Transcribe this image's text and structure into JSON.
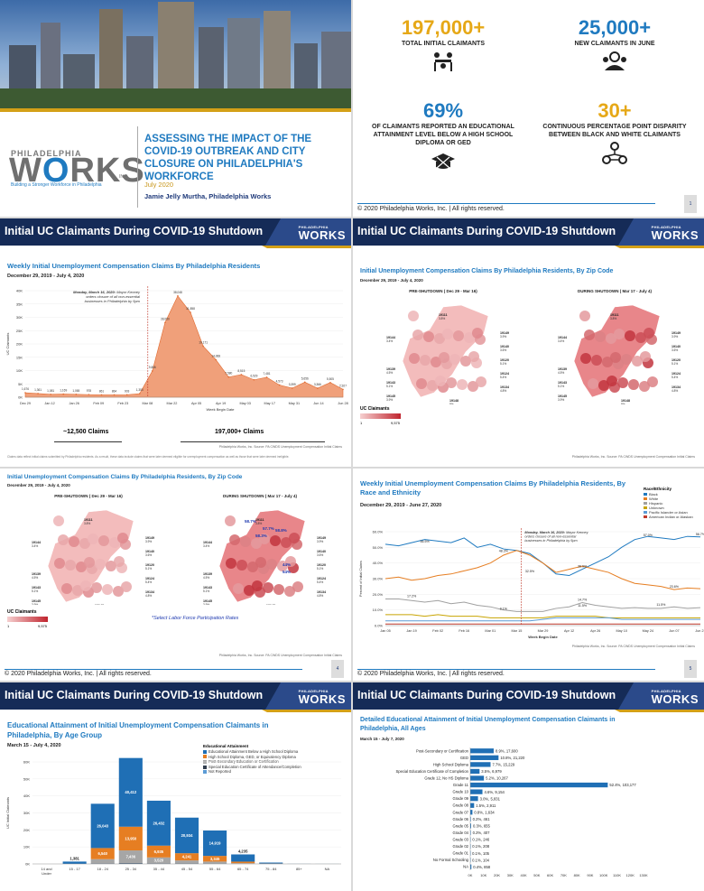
{
  "footer_text": "© 2020 Philadelphia Works, Inc. | All rights reserved.",
  "banner_title": "Initial UC Claimants During COVID-19 Shutdown",
  "banner_logo": {
    "top": "PHILADELPHIA",
    "main": "WORKS"
  },
  "colors": {
    "navy": "#152b57",
    "blue": "#1f7ac0",
    "gold": "#d4a017",
    "orange": "#e67e22",
    "salmon": "#f0a07a"
  },
  "cover": {
    "logo_top": "PHILADELPHIA",
    "logo_main_a": "W",
    "logo_main_o": "O",
    "logo_main_b": "RKS",
    "logo_inc": "INC",
    "logo_tagline": "Building a Stronger Workforce in Philadelphia",
    "title": "ASSESSING THE IMPACT OF THE COVID-19 OUTBREAK AND CITY CLOSURE ON PHILADELPHIA'S WORKFORCE",
    "date": "July 2020",
    "author": "Jamie Jelly Murtha, Philadelphia Works"
  },
  "stats": {
    "s1": {
      "value": "197,000+",
      "label": "TOTAL INITIAL CLAIMANTS",
      "icon": "meeting-icon"
    },
    "s2": {
      "value": "25,000+",
      "label": "NEW CLAIMANTS IN JUNE",
      "icon": "group-icon"
    },
    "s3": {
      "value": "69%",
      "label": "OF CLAIMANTS REPORTED AN EDUCATIONAL ATTAINMENT LEVEL BELOW A HIGH SCHOOL DIPLOMA OR GED",
      "icon": "graduation-cap-icon"
    },
    "s4": {
      "value": "30+",
      "label": "CONTINUOUS PERCENTAGE POINT DISPARITY BETWEEN BLACK AND WHITE CLAIMANTS",
      "icon": "network-icon"
    },
    "page": "1"
  },
  "weekly": {
    "title": "Weekly Initial Unemployment Compensation Claims By Philadelphia Residents",
    "subtitle": "December 29, 2019 - July 4, 2020",
    "annotation_date": "Monday, March 16, 2020:",
    "annotation_text": "Mayor Kenney orders closure of all non-essential businesses in Philadelphia by 5pm",
    "ylabel": "UC Claimants",
    "xlabel": "Week Begin Date",
    "before_total": "~12,500 Claims",
    "after_total": "197,000+ Claims",
    "source": "Philadelphia Works, Inc. Source: PA CWDS Unemployment Compensation Initial Claims",
    "note": "Claims data reflect initial claims submitted by Philadelphia residents. As a result, these data include claims that were later deemed eligible for unemployment compensation as well as those that were later deemed ineligible."
  },
  "chart_data": [
    {
      "type": "area",
      "title": "Weekly Initial Unemployment Compensation Claims By Philadelphia Residents",
      "xlabel": "Week Begin Date",
      "ylabel": "UC Claimants",
      "ylim": [
        0,
        40000
      ],
      "yticks": [
        "0K",
        "5K",
        "10K",
        "15K",
        "20K",
        "25K",
        "30K",
        "35K",
        "40K"
      ],
      "xticks": [
        "Dec 29",
        "Jan 12",
        "Jan 26",
        "Feb 09",
        "Feb 23",
        "Mar 08",
        "Mar 22",
        "Apr 05",
        "Apr 19",
        "May 03",
        "May 17",
        "May 31",
        "Jun 14",
        "Jun 28"
      ],
      "values": [
        1676,
        1361,
        1081,
        1169,
        1065,
        978,
        861,
        864,
        903,
        1353,
        9856,
        28050,
        38048,
        31858,
        19171,
        14068,
        7580,
        8515,
        6529,
        7481,
        4573,
        3399,
        5656,
        3366,
        5505,
        2927
      ],
      "labels": [
        "1,676",
        "1,361",
        "1,081",
        "1,169",
        "1,065",
        "978",
        "861",
        "864",
        "903",
        "1,353",
        "9,856",
        "28,050",
        "38,048",
        "31,858",
        "19,171",
        "14,068",
        "7,580",
        "8,515",
        "6,529",
        "7,481",
        "4,573",
        "3,399",
        "5,656",
        "3,366",
        "5,505",
        "2,927"
      ],
      "series_labels": [
        "Mar 15",
        "Mar 22",
        "Mar 29",
        "Apr 05",
        "Apr 12",
        "Apr 19",
        "",
        "May 03",
        "",
        "May 17",
        "May 24",
        "",
        "",
        "",
        "",
        ""
      ]
    },
    {
      "type": "line",
      "title": "Weekly Initial Unemployment Compensation Claims By Philadelphia Residents, By Race and Ethnicity",
      "xlabel": "Week Begin Date",
      "ylabel": "Percent of Initial Claims",
      "ylim": [
        0,
        60
      ],
      "yticks": [
        "0.0%",
        "10.0%",
        "20.0%",
        "30.0%",
        "40.0%",
        "50.0%",
        "60.0%"
      ],
      "xticks": [
        "Jan 05",
        "Jan 19",
        "Feb 02",
        "Feb 16",
        "Mar 01",
        "Mar 15",
        "Mar 29",
        "Apr 12",
        "Apr 26",
        "May 10",
        "May 24",
        "Jun 07",
        "Jun 21"
      ],
      "series": [
        {
          "name": "Black",
          "color": "#1f7ac0",
          "values": [
            52,
            51,
            53,
            55,
            54,
            53,
            56,
            50,
            52,
            49,
            48,
            46,
            40,
            33,
            32,
            36,
            40,
            44,
            50,
            55,
            57,
            56,
            55,
            57,
            56.7
          ]
        },
        {
          "name": "White",
          "color": "#e67e22",
          "values": [
            30,
            31,
            29,
            30,
            32,
            33,
            35,
            37,
            40,
            45,
            48,
            45,
            40,
            34,
            36,
            38,
            36,
            34,
            30,
            27,
            26,
            25,
            23,
            24,
            23.6
          ]
        },
        {
          "name": "Hispanic",
          "color": "#a0a0a0",
          "values": [
            17,
            17,
            16,
            15,
            16,
            14,
            15,
            13,
            12,
            10,
            9,
            9,
            9,
            11,
            12,
            14.7,
            13,
            12,
            11,
            11.5,
            11,
            11,
            12,
            11,
            11.5
          ]
        },
        {
          "name": "Unknown",
          "color": "#c8a400",
          "values": [
            7,
            7,
            7,
            6,
            7,
            6,
            6,
            6,
            5,
            5,
            5,
            5,
            5,
            6,
            6,
            6,
            6,
            5,
            5,
            5,
            5,
            5,
            5,
            5,
            5
          ]
        },
        {
          "name": "Pacific Islander or Asian",
          "color": "#5b9bd5",
          "values": [
            3,
            3,
            3,
            3,
            3,
            3,
            3,
            3,
            3,
            3,
            3,
            3,
            4,
            5,
            5,
            5,
            5,
            5,
            4,
            4,
            4,
            4,
            4,
            4,
            4
          ]
        },
        {
          "name": "American Indian or Alaskan",
          "color": "#c0392b",
          "values": [
            1,
            1,
            1,
            1,
            1,
            1,
            1,
            1,
            1,
            1,
            1,
            1,
            1,
            1,
            1,
            1,
            1,
            1,
            1,
            1,
            1,
            1,
            1,
            1,
            1
          ]
        }
      ]
    },
    {
      "type": "bar",
      "title": "Educational Attainment of Initial Unemployment Compensation Claimants in Philadelphia, By Age Group",
      "ylabel": "UC Initial Claimants",
      "ylim": [
        0,
        60000
      ],
      "yticks": [
        "0K",
        "10K",
        "20K",
        "30K",
        "40K",
        "50K",
        "60K"
      ],
      "categories": [
        "14 and Under",
        "15 - 17",
        "18 - 24",
        "25 - 34",
        "35 - 44",
        "45 - 54",
        "55 - 64",
        "65 - 74",
        "75 - 84",
        "85+",
        "NA"
      ],
      "series": [
        {
          "name": "Educational Attainment Below a High School Diploma",
          "color": "#1f6fb5",
          "values": [
            0,
            1381,
            26043,
            40412,
            26432,
            20934,
            14919,
            4235,
            600,
            50,
            30
          ]
        },
        {
          "name": "High School Diploma, GED, or Equivalency Diploma",
          "color": "#e67e22",
          "values": [
            0,
            0,
            6540,
            13950,
            6935,
            4241,
            3345,
            900,
            150,
            0,
            0
          ]
        },
        {
          "name": "Post-Secondary Education or Certification",
          "color": "#a6a6a6",
          "values": [
            0,
            0,
            2500,
            7436,
            3520,
            1800,
            1200,
            400,
            50,
            0,
            0
          ]
        },
        {
          "name": "Special Education Certificate of Attendance/Completion",
          "color": "#333f50",
          "values": [
            0,
            0,
            200,
            300,
            200,
            150,
            100,
            30,
            0,
            0,
            0
          ]
        },
        {
          "name": "Not Reported",
          "color": "#5b9bd5",
          "values": [
            0,
            0,
            100,
            200,
            100,
            100,
            80,
            20,
            0,
            0,
            0
          ]
        }
      ],
      "labels": {
        "15 - 17": "1,381",
        "18 - 24": [
          "26,043",
          "6,540"
        ],
        "25 - 34": [
          "40,412",
          "13,950",
          "7,436"
        ],
        "35 - 44": [
          "26,432",
          "6,935",
          "3,520"
        ],
        "45 - 54": [
          "20,934",
          "4,241"
        ],
        "55 - 64": [
          "14,919",
          "3,345"
        ],
        "65 - 74": "4,235"
      }
    },
    {
      "type": "bar",
      "title": "Detailed Educational Attainment of Initial Unemployment Compensation Claimants in Philadelphia, All Ages",
      "xlim": [
        0,
        130000
      ],
      "xticks": [
        "0K",
        "10K",
        "20K",
        "30K",
        "40K",
        "50K",
        "60K",
        "70K",
        "80K",
        "90K",
        "100K",
        "110K",
        "120K",
        "130K"
      ],
      "categories": [
        "Post-Secondary or Certification",
        "GED",
        "High School Diploma",
        "Special Education Certificate of Completion",
        "Grade 12, No HS Diploma",
        "Grade 11",
        "Grade 10",
        "Grade 09",
        "Grade 08",
        "Grade 07",
        "Grade 06",
        "Grade 05",
        "Grade 04",
        "Grade 03",
        "Grade 02",
        "Grade 01",
        "No Formal Schooling",
        "NA"
      ],
      "values": [
        17600,
        21220,
        15229,
        6979,
        10267,
        103177,
        9154,
        5831,
        2911,
        1634,
        461,
        655,
        407,
        246,
        208,
        105,
        104,
        858
      ],
      "labels": [
        "8.9%, 17,600",
        "10.8%, 21,220",
        "7.7%, 15,229",
        "3.5%, 6,979",
        "5.2%, 10,267",
        "52.4%, 103,177",
        "4.6%, 9,154",
        "3.0%, 5,831",
        "1.5%, 2,911",
        "0.8%, 1,634",
        "0.2%, 461",
        "0.3%, 655",
        "0.2%, 407",
        "0.1%, 246",
        "0.1%, 208",
        "0.1%, 105",
        "0.1%, 104",
        "0.4%, 858"
      ]
    }
  ],
  "zip": {
    "title": "Initial Unemployment Compensation Claims By Philadelphia Residents, By Zip Code",
    "subtitle": "December 29, 2019 - July 4, 2020",
    "pre_label": "PRE-SHUTDOWN ( Dec 29 - Mar 16)",
    "during_label": "DURING SHUTDOWN ( Mar 17 - July 4)",
    "legend_title": "UC Claimants",
    "legend_min": "1",
    "legend_max": "9,575",
    "zips": [
      "19111",
      "19144",
      "19140",
      "19120",
      "19124",
      "19134",
      "19139",
      "19143",
      "19145",
      "19148",
      "19149"
    ],
    "zip_values": [
      "3.8%",
      "3.4%",
      "3.6%",
      "5.1%",
      "5.4%",
      "4.8%",
      "4.5%",
      "5.1%",
      "3.9%",
      "8%",
      "3.9%"
    ],
    "highlights": [
      "58.7%",
      "57.7%",
      "58.3%",
      "58.8%",
      "44%",
      "54%"
    ],
    "select_note": "*Select Labor Force Participation Rates",
    "source": "Philadelphia Works, Inc. Source: PA CWDS Unemployment Compensation Initial Claims",
    "page": "4"
  },
  "race": {
    "title": "Weekly Initial Unemployment Compensation Claims By Philadelphia Residents, By Race and Ethnicity",
    "subtitle": "December 29, 2019 - June 27, 2020",
    "legend_title": "Race/Ethnicity",
    "annotation_date": "Monday, March 16, 2020:",
    "annotation_text": "Mayor Kenney orders closure of all non-essential businesses in Philadelphia by 5pm",
    "pt_labels": [
      "56.5%",
      "48.3%",
      "32.5%",
      "57.0%",
      "56.7%",
      "36.0%",
      "23.6%",
      "17.2%",
      "9.1%",
      "14.7%",
      "11.5%",
      "11.5%"
    ],
    "ylabel": "Percent of Initial Claims",
    "xlabel": "Week Begin Date",
    "source": "Philadelphia Works, Inc. Source: PA CWDS Unemployment Compensation Initial Claims",
    "page": "5"
  },
  "edu_age": {
    "title": "Educational Attainment of Initial Unemployment Compensation Claimants in Philadelphia, By Age Group",
    "subtitle": "March 15 - July 4, 2020",
    "legend_title": "Educational Attainment",
    "ylabel": "UC Initial Claimants"
  },
  "edu_detail": {
    "title": "Detailed Educational Attainment of Initial Unemployment Compensation Claimants in Philadelphia, All Ages",
    "subtitle": "March 15 - July 7, 2020"
  }
}
